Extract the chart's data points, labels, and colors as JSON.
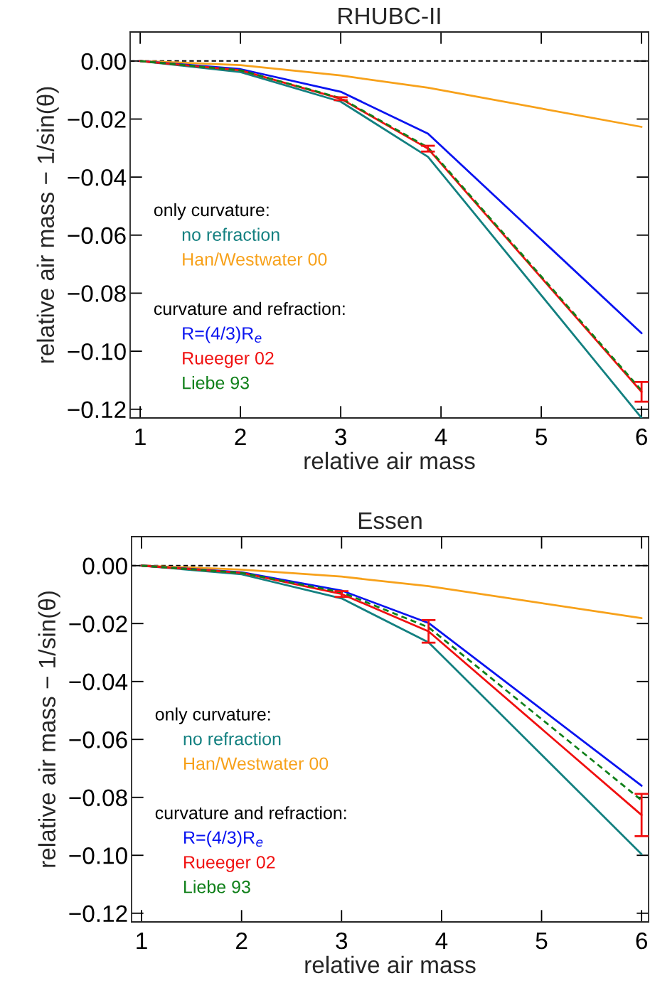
{
  "chart_data": [
    {
      "type": "line",
      "title": "RHUBC-II",
      "xlabel": "relative air mass",
      "ylabel": "relative air mass − 1/sin(θ)",
      "x": [
        1,
        2,
        3,
        3.87,
        6
      ],
      "xlim": [
        0.9,
        6.07
      ],
      "xticks": [
        1,
        2,
        3,
        4,
        5,
        6
      ],
      "ylim": [
        -0.123,
        0.01
      ],
      "yticks": [
        {
          "value": 0,
          "label": "0.00"
        },
        {
          "value": -0.02,
          "label": "−0.02"
        },
        {
          "value": -0.04,
          "label": "−0.04"
        },
        {
          "value": -0.06,
          "label": "−0.06"
        },
        {
          "value": -0.08,
          "label": "−0.08"
        },
        {
          "value": -0.1,
          "label": "−0.10"
        },
        {
          "value": -0.12,
          "label": "−0.12"
        }
      ],
      "annotations": [
        "only curvature:",
        "curvature and refraction:"
      ],
      "ref_lines": [
        {
          "axis": "y",
          "value": 0,
          "color": "#000000",
          "line_style": "dashed"
        }
      ],
      "series": [
        {
          "name": "no refraction",
          "color": "#138080",
          "values": [
            0,
            -0.0038,
            -0.014,
            -0.033,
            -0.123
          ]
        },
        {
          "name": "Han/Westwater 00",
          "color": "#f7a11a",
          "values": [
            0,
            -0.0014,
            -0.005,
            -0.0092,
            -0.0227
          ]
        },
        {
          "name": "R=(4/3)R$_{e}$",
          "color": "#0a14f0",
          "values": [
            0,
            -0.0028,
            -0.0106,
            -0.025,
            -0.0938
          ]
        },
        {
          "name": "Rueeger 02",
          "color": "#f01010",
          "values": [
            0,
            -0.0032,
            -0.013,
            -0.0302,
            -0.114
          ],
          "errors": [
            null,
            null,
            0.0005,
            0.001,
            0.0034
          ]
        },
        {
          "name": "Liebe 93",
          "color": "#10801a",
          "line_style": "dashed",
          "values": [
            0,
            -0.0032,
            -0.0128,
            -0.0298,
            -0.1135
          ]
        }
      ]
    },
    {
      "type": "line",
      "title": "Essen",
      "xlabel": "relative air mass",
      "ylabel": "relative air mass − 1/sin(θ)",
      "x": [
        1,
        2,
        3,
        3.87,
        6
      ],
      "xlim": [
        0.9,
        6.07
      ],
      "xticks": [
        1,
        2,
        3,
        4,
        5,
        6
      ],
      "ylim": [
        -0.123,
        0.01
      ],
      "yticks": [
        {
          "value": 0,
          "label": "0.00"
        },
        {
          "value": -0.02,
          "label": "−0.02"
        },
        {
          "value": -0.04,
          "label": "−0.04"
        },
        {
          "value": -0.06,
          "label": "−0.06"
        },
        {
          "value": -0.08,
          "label": "−0.08"
        },
        {
          "value": -0.1,
          "label": "−0.10"
        },
        {
          "value": -0.12,
          "label": "−0.12"
        }
      ],
      "annotations": [
        "only curvature:",
        "curvature and refraction:"
      ],
      "ref_lines": [
        {
          "axis": "y",
          "value": 0,
          "color": "#000000",
          "line_style": "dashed"
        }
      ],
      "series": [
        {
          "name": "no refraction",
          "color": "#138080",
          "values": [
            0,
            -0.003,
            -0.0113,
            -0.0265,
            -0.0996
          ]
        },
        {
          "name": "Han/Westwater 00",
          "color": "#f7a11a",
          "values": [
            0,
            -0.0014,
            -0.0038,
            -0.0071,
            -0.0181
          ]
        },
        {
          "name": "R=(4/3)R$_{e}$",
          "color": "#0a14f0",
          "values": [
            0,
            -0.0023,
            -0.0086,
            -0.0198,
            -0.076
          ]
        },
        {
          "name": "Rueeger 02",
          "color": "#f01010",
          "values": [
            0,
            -0.0025,
            -0.0098,
            -0.0227,
            -0.0861
          ],
          "errors": [
            null,
            null,
            0.001,
            0.0039,
            0.0073
          ]
        },
        {
          "name": "Liebe 93",
          "color": "#10801a",
          "line_style": "dashed",
          "values": [
            0,
            -0.0025,
            -0.0092,
            -0.0213,
            -0.081
          ]
        }
      ]
    }
  ]
}
